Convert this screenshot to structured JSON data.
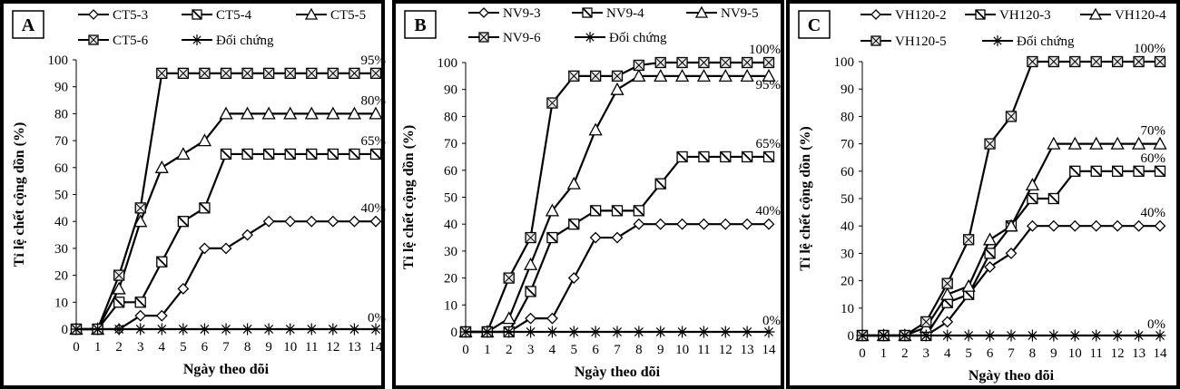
{
  "chart_data": [
    {
      "type": "line",
      "panel_letter": "A",
      "xlabel": "Ngày theo dõi",
      "ylabel": "Tỉ lệ chết cộng dồn (%)",
      "x": [
        0,
        1,
        2,
        3,
        4,
        5,
        6,
        7,
        8,
        9,
        10,
        11,
        12,
        13,
        14
      ],
      "ylim": [
        0,
        100
      ],
      "yticks": [
        0,
        10,
        20,
        30,
        40,
        50,
        60,
        70,
        80,
        90,
        100
      ],
      "grid": false,
      "legend_position": "top",
      "series": [
        {
          "name": "CT5-3",
          "marker": "diamond",
          "values": [
            0,
            0,
            0,
            5,
            5,
            15,
            30,
            30,
            35,
            40,
            40,
            40,
            40,
            40,
            40
          ]
        },
        {
          "name": "CT5-4",
          "marker": "square-slash",
          "values": [
            0,
            0,
            10,
            10,
            25,
            40,
            45,
            65,
            65,
            65,
            65,
            65,
            65,
            65,
            65
          ]
        },
        {
          "name": "CT5-5",
          "marker": "triangle",
          "values": [
            0,
            0,
            15,
            40,
            60,
            65,
            70,
            80,
            80,
            80,
            80,
            80,
            80,
            80,
            80
          ]
        },
        {
          "name": "CT5-6",
          "marker": "square-x",
          "values": [
            0,
            0,
            20,
            45,
            95,
            95,
            95,
            95,
            95,
            95,
            95,
            95,
            95,
            95,
            95
          ]
        },
        {
          "name": "Đối chứng",
          "marker": "star",
          "values": [
            0,
            0,
            0,
            0,
            0,
            0,
            0,
            0,
            0,
            0,
            0,
            0,
            0,
            0,
            0
          ]
        }
      ],
      "annotations": [
        {
          "text": "95%",
          "value": 95,
          "series": 3
        },
        {
          "text": "80%",
          "value": 80,
          "series": 2
        },
        {
          "text": "65%",
          "value": 65,
          "series": 1
        },
        {
          "text": "40%",
          "value": 40,
          "series": 0
        },
        {
          "text": "0%",
          "value": 0,
          "series": 4
        }
      ]
    },
    {
      "type": "line",
      "panel_letter": "B",
      "xlabel": "Ngày theo dõi",
      "ylabel": "Tỉ lệ chết cộng dồn (%)",
      "x": [
        0,
        1,
        2,
        3,
        4,
        5,
        6,
        7,
        8,
        9,
        10,
        11,
        12,
        13,
        14
      ],
      "ylim": [
        0,
        100
      ],
      "yticks": [
        0,
        10,
        20,
        30,
        40,
        50,
        60,
        70,
        80,
        90,
        100
      ],
      "grid": false,
      "legend_position": "top",
      "series": [
        {
          "name": "NV9-3",
          "marker": "diamond",
          "values": [
            0,
            0,
            0,
            5,
            5,
            20,
            35,
            35,
            40,
            40,
            40,
            40,
            40,
            40,
            40
          ]
        },
        {
          "name": "NV9-4",
          "marker": "square-slash",
          "values": [
            0,
            0,
            0,
            15,
            35,
            40,
            45,
            45,
            45,
            55,
            65,
            65,
            65,
            65,
            65
          ]
        },
        {
          "name": "NV9-5",
          "marker": "triangle",
          "values": [
            0,
            0,
            5,
            25,
            45,
            55,
            75,
            90,
            95,
            95,
            95,
            95,
            95,
            95,
            95
          ]
        },
        {
          "name": "NV9-6",
          "marker": "square-x",
          "values": [
            0,
            0,
            20,
            35,
            85,
            95,
            95,
            95,
            99,
            100,
            100,
            100,
            100,
            100,
            100
          ]
        },
        {
          "name": "Đối chứng",
          "marker": "star",
          "values": [
            0,
            0,
            0,
            0,
            0,
            0,
            0,
            0,
            0,
            0,
            0,
            0,
            0,
            0,
            0
          ]
        }
      ],
      "annotations": [
        {
          "text": "100%",
          "value": 100,
          "series": 3
        },
        {
          "text": "95%",
          "value": 95,
          "series": 2
        },
        {
          "text": "65%",
          "value": 65,
          "series": 1
        },
        {
          "text": "40%",
          "value": 40,
          "series": 0
        },
        {
          "text": "0%",
          "value": 0,
          "series": 4
        }
      ]
    },
    {
      "type": "line",
      "panel_letter": "C",
      "xlabel": "Ngày theo dõi",
      "ylabel": "Tỉ lệ chết cộng dồn (%)",
      "x": [
        0,
        1,
        2,
        3,
        4,
        5,
        6,
        7,
        8,
        9,
        10,
        11,
        12,
        13,
        14
      ],
      "ylim": [
        0,
        100
      ],
      "yticks": [
        0,
        10,
        20,
        30,
        40,
        50,
        60,
        70,
        80,
        90,
        100
      ],
      "grid": false,
      "legend_position": "top",
      "series": [
        {
          "name": "VH120-2",
          "marker": "diamond",
          "values": [
            0,
            0,
            0,
            0,
            5,
            15,
            25,
            30,
            40,
            40,
            40,
            40,
            40,
            40,
            40
          ]
        },
        {
          "name": "VH120-3",
          "marker": "square-slash",
          "values": [
            0,
            0,
            0,
            0,
            12,
            15,
            30,
            40,
            50,
            50,
            60,
            60,
            60,
            60,
            60
          ]
        },
        {
          "name": "VH120-4",
          "marker": "triangle",
          "values": [
            0,
            0,
            0,
            3,
            15,
            18,
            35,
            40,
            55,
            70,
            70,
            70,
            70,
            70,
            70
          ]
        },
        {
          "name": "VH120-5",
          "marker": "square-x",
          "values": [
            0,
            0,
            0,
            5,
            19,
            35,
            70,
            80,
            100,
            100,
            100,
            100,
            100,
            100,
            100
          ]
        },
        {
          "name": "Đối chứng",
          "marker": "star",
          "values": [
            0,
            0,
            0,
            0,
            0,
            0,
            0,
            0,
            0,
            0,
            0,
            0,
            0,
            0,
            0
          ]
        }
      ],
      "annotations": [
        {
          "text": "100%",
          "value": 100,
          "series": 3
        },
        {
          "text": "70%",
          "value": 70,
          "series": 2
        },
        {
          "text": "60%",
          "value": 60,
          "series": 1
        },
        {
          "text": "40%",
          "value": 40,
          "series": 0
        },
        {
          "text": "0%",
          "value": 0,
          "series": 4
        }
      ]
    }
  ]
}
